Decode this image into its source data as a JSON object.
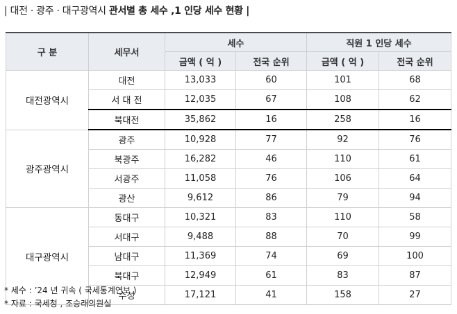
{
  "title": {
    "prefix": "| 대전 · 광주 · 대구광역시",
    "main": "관서별 총 세수 ,1 인당 세수 현황 |"
  },
  "table": {
    "headers": {
      "division": "구 분",
      "office": "세무서",
      "tax_revenue": "세수",
      "per_staff": "직원 1 인당 세수",
      "amount": "금액 ( 억 )",
      "national_rank": "전국 순위"
    },
    "groups": [
      {
        "region": "대전광역시",
        "rows": [
          {
            "office": "대전",
            "amount": "13,033",
            "rank": "60",
            "per_amount": "101",
            "per_rank": "68",
            "highlight": false
          },
          {
            "office": "서 대 전",
            "amount": "12,035",
            "rank": "67",
            "per_amount": "108",
            "per_rank": "62",
            "highlight": false
          },
          {
            "office": "북대전",
            "amount": "35,862",
            "rank": "16",
            "per_amount": "258",
            "per_rank": "16",
            "highlight": true
          }
        ]
      },
      {
        "region": "광주광역시",
        "rows": [
          {
            "office": "광주",
            "amount": "10,928",
            "rank": "77",
            "per_amount": "92",
            "per_rank": "76",
            "highlight": false
          },
          {
            "office": "북광주",
            "amount": "16,282",
            "rank": "46",
            "per_amount": "110",
            "per_rank": "61",
            "highlight": false
          },
          {
            "office": "서광주",
            "amount": "11,058",
            "rank": "76",
            "per_amount": "106",
            "per_rank": "64",
            "highlight": false
          },
          {
            "office": "광산",
            "amount": "9,612",
            "rank": "86",
            "per_amount": "79",
            "per_rank": "94",
            "highlight": false
          }
        ]
      },
      {
        "region": "대구광역시",
        "rows": [
          {
            "office": "동대구",
            "amount": "10,321",
            "rank": "83",
            "per_amount": "110",
            "per_rank": "58",
            "highlight": false
          },
          {
            "office": "서대구",
            "amount": "9,488",
            "rank": "88",
            "per_amount": "70",
            "per_rank": "99",
            "highlight": false
          },
          {
            "office": "남대구",
            "amount": "11,369",
            "rank": "74",
            "per_amount": "69",
            "per_rank": "100",
            "highlight": false
          },
          {
            "office": "북대구",
            "amount": "12,949",
            "rank": "61",
            "per_amount": "83",
            "per_rank": "87",
            "highlight": false
          },
          {
            "office": "수성",
            "amount": "17,121",
            "rank": "41",
            "per_amount": "158",
            "per_rank": "27",
            "highlight": false
          }
        ]
      }
    ]
  },
  "notes": [
    "* 세수 : ’24 년 귀속 ( 국세통계연보 )",
    "* 자료 : 국세청 , 조승래의원실"
  ]
}
